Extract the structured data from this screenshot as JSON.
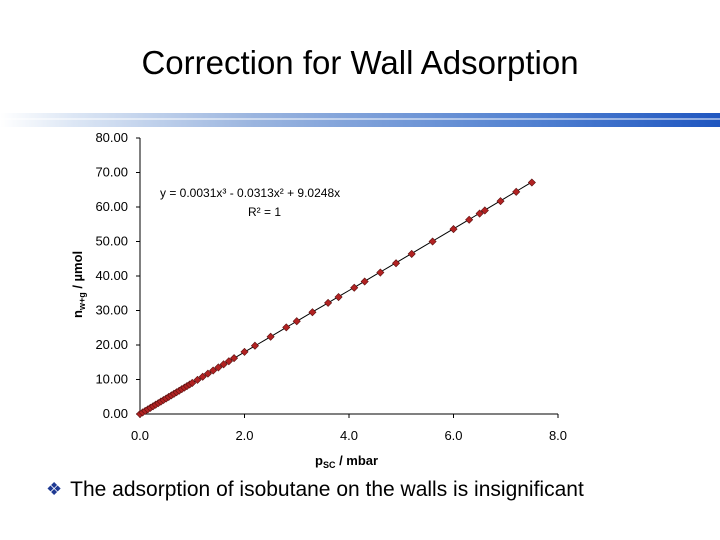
{
  "slide": {
    "title": "Correction for Wall Adsorption",
    "bullet_icon": "diamond-bullet-icon",
    "bullet_text": "The adsorption of isobutane on the walls is insignificant"
  },
  "colors": {
    "marker": "#b22222",
    "marker_edge": "#5a1010",
    "trendline": "#000000",
    "title_bar_end": "#1f56c0"
  },
  "chart_data": {
    "type": "scatter",
    "title": "",
    "xlabel": "p_SC / mbar",
    "ylabel": "n_w+g / µmol",
    "xlim": [
      0,
      8
    ],
    "ylim": [
      0,
      80
    ],
    "x_tick_labels": [
      "0.0",
      "2.0",
      "4.0",
      "6.0",
      "8.0"
    ],
    "y_tick_labels": [
      "0.00",
      "10.00",
      "20.00",
      "30.00",
      "40.00",
      "50.00",
      "60.00",
      "70.00",
      "80.00"
    ],
    "grid": false,
    "legend": "none",
    "trendline": {
      "type": "polynomial",
      "coefficients": {
        "a3": 0.0031,
        "a2": -0.0313,
        "a1": 9.0248,
        "a0": 0
      },
      "equation_text": "y = 0.0031x³ - 0.0313x² + 9.0248x",
      "r2_text": "R² = 1"
    },
    "series": [
      {
        "x": [
          0.0,
          0.05,
          0.1,
          0.15,
          0.2,
          0.25,
          0.3,
          0.35,
          0.4,
          0.45,
          0.5,
          0.55,
          0.6,
          0.65,
          0.7,
          0.75,
          0.8,
          0.85,
          0.9,
          0.95,
          1.0,
          1.1,
          1.2,
          1.3,
          1.4,
          1.5,
          1.6,
          1.7,
          1.8,
          2.0,
          2.2,
          2.5,
          2.8,
          3.0,
          3.3,
          3.6,
          3.8,
          4.1,
          4.3,
          4.6,
          4.9,
          5.2,
          5.6,
          6.0,
          6.3,
          6.5,
          6.6,
          6.9,
          7.2,
          7.5
        ],
        "y": [
          0.0,
          0.45,
          0.9,
          1.35,
          1.8,
          2.25,
          2.7,
          3.15,
          3.6,
          4.05,
          4.5,
          4.95,
          5.4,
          5.85,
          6.3,
          6.75,
          7.2,
          7.65,
          8.1,
          8.55,
          9.0,
          9.9,
          10.8,
          11.7,
          12.6,
          13.5,
          14.4,
          15.3,
          16.2,
          18.0,
          19.8,
          22.4,
          25.1,
          26.9,
          29.5,
          32.2,
          33.9,
          36.6,
          38.4,
          41.0,
          43.7,
          46.4,
          50.0,
          53.6,
          56.3,
          58.1,
          59.0,
          61.7,
          64.4,
          67.1
        ]
      }
    ]
  }
}
